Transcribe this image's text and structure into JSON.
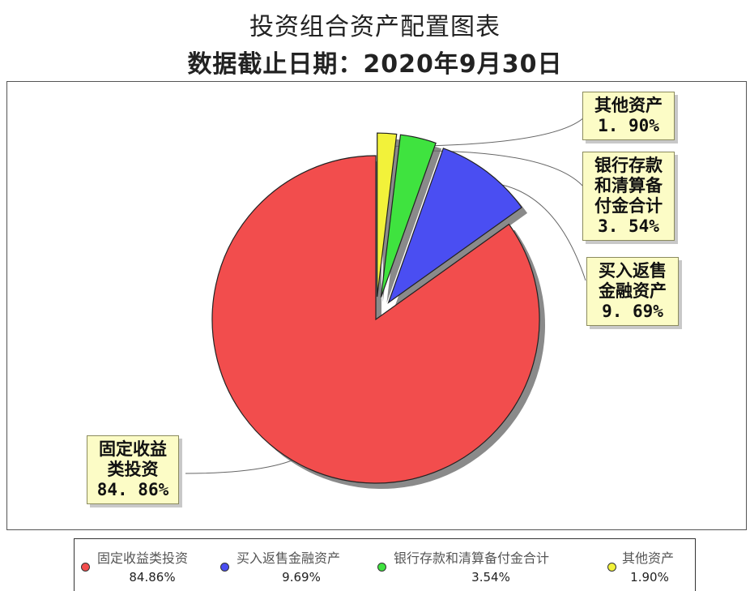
{
  "chart_data": {
    "type": "pie",
    "title": "投资组合资产配置图表",
    "subtitle": "数据截止日期：2020年9月30日",
    "slices": [
      {
        "key": "fixed",
        "legend_name": "固定收益类投资",
        "callout_lines": [
          "固定收益",
          "类投资"
        ],
        "value": 84.86,
        "label": "84.86%",
        "color": "#f24d4d"
      },
      {
        "key": "repo",
        "legend_name": "买入返售金融资产",
        "callout_lines": [
          "买入返售",
          "金融资产"
        ],
        "value": 9.69,
        "label": "9.69%",
        "color": "#4a4ef2"
      },
      {
        "key": "bank",
        "legend_name": "银行存款和清算备付金合计",
        "callout_lines": [
          "银行存款",
          "和清算备",
          "付金合计"
        ],
        "value": 3.54,
        "label": "3.54%",
        "color": "#3fe33f"
      },
      {
        "key": "other",
        "legend_name": "其他资产",
        "callout_lines": [
          "其他资产"
        ],
        "value": 1.9,
        "label": "1.90%",
        "color": "#f2f23a"
      }
    ],
    "callout_values": [
      "84. 86%",
      "9. 69%",
      "3. 54%",
      "1. 90%"
    ],
    "legend_placement": "bottom"
  }
}
